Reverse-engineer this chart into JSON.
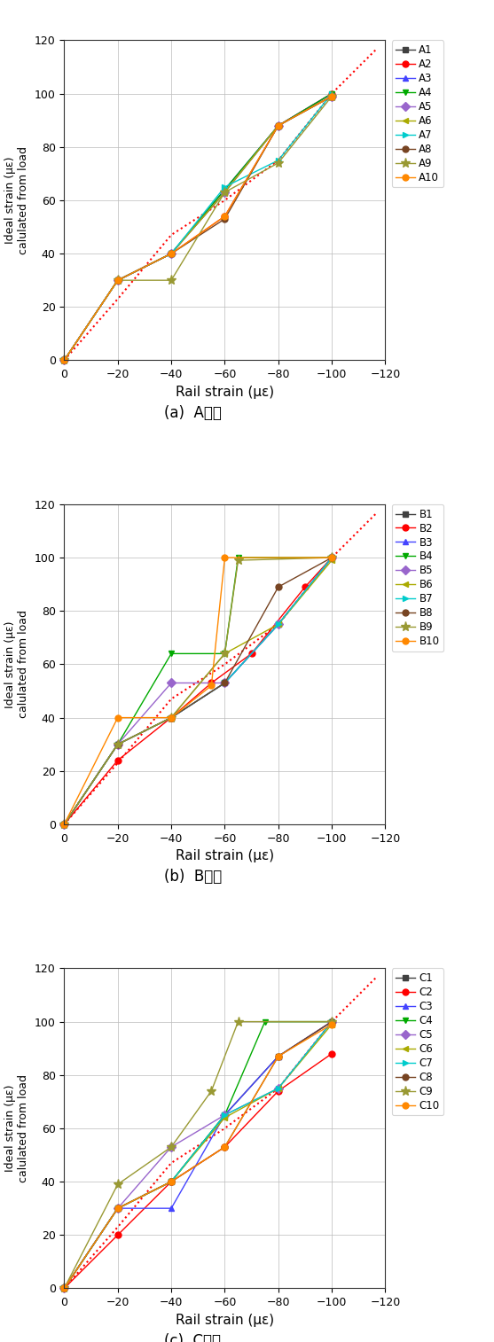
{
  "reference_line": {
    "x": [
      0,
      -20,
      -40,
      -60,
      -80,
      -100,
      -110,
      -117
    ],
    "y": [
      0,
      23,
      47,
      60,
      75,
      100,
      110,
      117
    ]
  },
  "panels": [
    {
      "label": "(a)  A단면",
      "series": [
        {
          "name": "A1",
          "color": "#404040",
          "marker": "s",
          "x": [
            0,
            -20,
            -40,
            -60,
            -80,
            -100
          ],
          "y": [
            0,
            30,
            40,
            63,
            88,
            99
          ]
        },
        {
          "name": "A2",
          "color": "#FF0000",
          "marker": "o",
          "x": [
            0,
            -20,
            -40,
            -60,
            -80,
            -100
          ],
          "y": [
            0,
            30,
            40,
            54,
            88,
            100
          ]
        },
        {
          "name": "A3",
          "color": "#4444FF",
          "marker": "^",
          "x": [
            0,
            -20,
            -40,
            -60,
            -80,
            -100
          ],
          "y": [
            0,
            30,
            40,
            64,
            88,
            100
          ]
        },
        {
          "name": "A4",
          "color": "#00AA00",
          "marker": "v",
          "x": [
            0,
            -20,
            -40,
            -60,
            -80,
            -100
          ],
          "y": [
            0,
            30,
            40,
            64,
            88,
            100
          ]
        },
        {
          "name": "A5",
          "color": "#9966CC",
          "marker": "D",
          "x": [
            0,
            -20,
            -40,
            -60,
            -80,
            -100
          ],
          "y": [
            0,
            30,
            40,
            63,
            88,
            99
          ]
        },
        {
          "name": "A6",
          "color": "#AAAA00",
          "marker": "<",
          "x": [
            0,
            -20,
            -40,
            -60,
            -80,
            -100
          ],
          "y": [
            0,
            30,
            40,
            63,
            88,
            99
          ]
        },
        {
          "name": "A7",
          "color": "#00CCCC",
          "marker": ">",
          "x": [
            0,
            -20,
            -40,
            -60,
            -80,
            -100
          ],
          "y": [
            0,
            30,
            40,
            65,
            75,
            100
          ]
        },
        {
          "name": "A8",
          "color": "#774422",
          "marker": "o",
          "x": [
            0,
            -20,
            -40,
            -60,
            -80,
            -100
          ],
          "y": [
            0,
            30,
            40,
            53,
            88,
            99
          ]
        },
        {
          "name": "A9",
          "color": "#999933",
          "marker": "*",
          "x": [
            0,
            -20,
            -40,
            -60,
            -80,
            -100
          ],
          "y": [
            0,
            30,
            30,
            63,
            74,
            99
          ]
        },
        {
          "name": "A10",
          "color": "#FF8800",
          "marker": "o",
          "x": [
            0,
            -20,
            -40,
            -60,
            -80,
            -100
          ],
          "y": [
            0,
            30,
            40,
            54,
            88,
            99
          ]
        }
      ]
    },
    {
      "label": "(b)  B단면",
      "series": [
        {
          "name": "B1",
          "color": "#404040",
          "marker": "s",
          "x": [
            0,
            -20,
            -40,
            -60,
            -80,
            -100
          ],
          "y": [
            0,
            30,
            40,
            53,
            75,
            100
          ]
        },
        {
          "name": "B2",
          "color": "#FF0000",
          "marker": "o",
          "x": [
            0,
            -20,
            -40,
            -55,
            -70,
            -90,
            -100
          ],
          "y": [
            0,
            24,
            40,
            53,
            64,
            89,
            100
          ]
        },
        {
          "name": "B3",
          "color": "#4444FF",
          "marker": "^",
          "x": [
            0,
            -20,
            -40,
            -60,
            -80,
            -100
          ],
          "y": [
            0,
            30,
            40,
            53,
            75,
            100
          ]
        },
        {
          "name": "B4",
          "color": "#00AA00",
          "marker": "v",
          "x": [
            0,
            -20,
            -40,
            -60,
            -65,
            -100
          ],
          "y": [
            0,
            30,
            64,
            64,
            100,
            100
          ]
        },
        {
          "name": "B5",
          "color": "#9966CC",
          "marker": "D",
          "x": [
            0,
            -20,
            -40,
            -60,
            -80,
            -100
          ],
          "y": [
            0,
            30,
            53,
            53,
            75,
            100
          ]
        },
        {
          "name": "B6",
          "color": "#AAAA00",
          "marker": "<",
          "x": [
            0,
            -20,
            -40,
            -60,
            -80,
            -100
          ],
          "y": [
            0,
            30,
            40,
            64,
            75,
            99
          ]
        },
        {
          "name": "B7",
          "color": "#00CCCC",
          "marker": ">",
          "x": [
            0,
            -20,
            -40,
            -60,
            -80,
            -100
          ],
          "y": [
            0,
            30,
            40,
            53,
            75,
            100
          ]
        },
        {
          "name": "B8",
          "color": "#774422",
          "marker": "o",
          "x": [
            0,
            -20,
            -40,
            -60,
            -80,
            -100
          ],
          "y": [
            0,
            30,
            40,
            53,
            89,
            100
          ]
        },
        {
          "name": "B9",
          "color": "#999933",
          "marker": "*",
          "x": [
            0,
            -20,
            -40,
            -60,
            -65,
            -100
          ],
          "y": [
            0,
            30,
            40,
            64,
            99,
            100
          ]
        },
        {
          "name": "B10",
          "color": "#FF8800",
          "marker": "o",
          "x": [
            0,
            -20,
            -40,
            -55,
            -60,
            -100
          ],
          "y": [
            0,
            40,
            40,
            52,
            100,
            100
          ]
        }
      ]
    },
    {
      "label": "(c)  C단면",
      "series": [
        {
          "name": "C1",
          "color": "#404040",
          "marker": "s",
          "x": [
            0,
            -20,
            -40,
            -60,
            -80,
            -100
          ],
          "y": [
            0,
            30,
            40,
            65,
            87,
            100
          ]
        },
        {
          "name": "C2",
          "color": "#FF0000",
          "marker": "o",
          "x": [
            0,
            -20,
            -40,
            -60,
            -80,
            -100
          ],
          "y": [
            0,
            20,
            40,
            53,
            74,
            88
          ]
        },
        {
          "name": "C3",
          "color": "#4444FF",
          "marker": "^",
          "x": [
            0,
            -20,
            -40,
            -60,
            -80,
            -100
          ],
          "y": [
            0,
            30,
            30,
            65,
            87,
            100
          ]
        },
        {
          "name": "C4",
          "color": "#00AA00",
          "marker": "v",
          "x": [
            0,
            -20,
            -40,
            -60,
            -75,
            -100
          ],
          "y": [
            0,
            30,
            40,
            65,
            100,
            100
          ]
        },
        {
          "name": "C5",
          "color": "#9966CC",
          "marker": "D",
          "x": [
            0,
            -20,
            -40,
            -60,
            -80,
            -100
          ],
          "y": [
            0,
            30,
            53,
            65,
            75,
            100
          ]
        },
        {
          "name": "C6",
          "color": "#AAAA00",
          "marker": "<",
          "x": [
            0,
            -20,
            -40,
            -60,
            -80,
            -100
          ],
          "y": [
            0,
            30,
            40,
            64,
            75,
            99
          ]
        },
        {
          "name": "C7",
          "color": "#00CCCC",
          "marker": ">",
          "x": [
            0,
            -20,
            -40,
            -60,
            -80,
            -100
          ],
          "y": [
            0,
            30,
            40,
            65,
            75,
            100
          ]
        },
        {
          "name": "C8",
          "color": "#774422",
          "marker": "o",
          "x": [
            0,
            -20,
            -40,
            -60,
            -80,
            -100
          ],
          "y": [
            0,
            30,
            40,
            53,
            87,
            100
          ]
        },
        {
          "name": "C9",
          "color": "#999933",
          "marker": "*",
          "x": [
            0,
            -20,
            -40,
            -55,
            -65,
            -100
          ],
          "y": [
            0,
            39,
            53,
            74,
            100,
            100
          ]
        },
        {
          "name": "C10",
          "color": "#FF8800",
          "marker": "o",
          "x": [
            0,
            -20,
            -40,
            -60,
            -80,
            -100
          ],
          "y": [
            0,
            30,
            40,
            53,
            87,
            99
          ]
        }
      ]
    }
  ],
  "xlim_left": 0,
  "xlim_right": -120,
  "ylim_bottom": 0,
  "ylim_top": 120,
  "xticks": [
    0,
    -20,
    -40,
    -60,
    -80,
    -100,
    -120
  ],
  "yticks": [
    0,
    20,
    40,
    60,
    80,
    100,
    120
  ],
  "xlabel": "Rail strain (με)",
  "ylabel_line1": "Ideal strain (με)",
  "ylabel_line2": "calulated from load",
  "background": "#FFFFFF",
  "grid_color": "#BBBBBB",
  "fig_width": 5.57,
  "fig_height": 15.14
}
